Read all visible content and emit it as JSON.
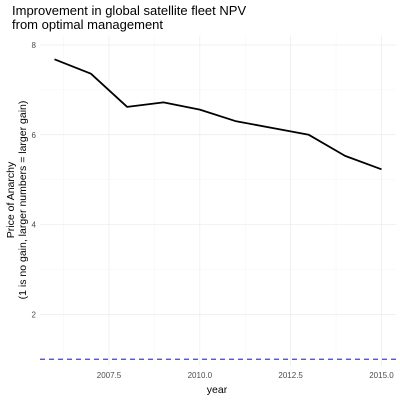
{
  "chart_data": {
    "type": "line",
    "title": "Improvement in global satellite fleet NPV",
    "subtitle": "from optimal management",
    "xlabel": "year",
    "ylabel": "Price of Anarchy",
    "ylabel_sub": "(1 is no gain, larger numbers = larger gain)",
    "xlim": [
      2005.6,
      2015.4
    ],
    "ylim": [
      0.85,
      8.2
    ],
    "x_ticks": [
      2007.5,
      2010.0,
      2012.5,
      2015.0
    ],
    "x_tick_labels": [
      "2007.5",
      "2010.0",
      "2012.5",
      "2015.0"
    ],
    "x_minor_ticks": [
      2006.25,
      2008.75,
      2011.25,
      2013.75
    ],
    "y_ticks": [
      2,
      4,
      6,
      8
    ],
    "y_tick_labels": [
      "2",
      "4",
      "6",
      "8"
    ],
    "y_minor_ticks": [
      1,
      3,
      5,
      7
    ],
    "grid": true,
    "series": [
      {
        "color": "#000000",
        "x": [
          2006,
          2007,
          2008,
          2009,
          2010,
          2011,
          2012,
          2013,
          2014,
          2015
        ],
        "values": [
          7.68,
          7.36,
          6.62,
          6.72,
          6.56,
          6.3,
          6.15,
          6.0,
          5.53,
          5.23
        ]
      }
    ],
    "reference_line": {
      "y": 1,
      "color": "#3a3aff",
      "style": "dashed"
    }
  }
}
